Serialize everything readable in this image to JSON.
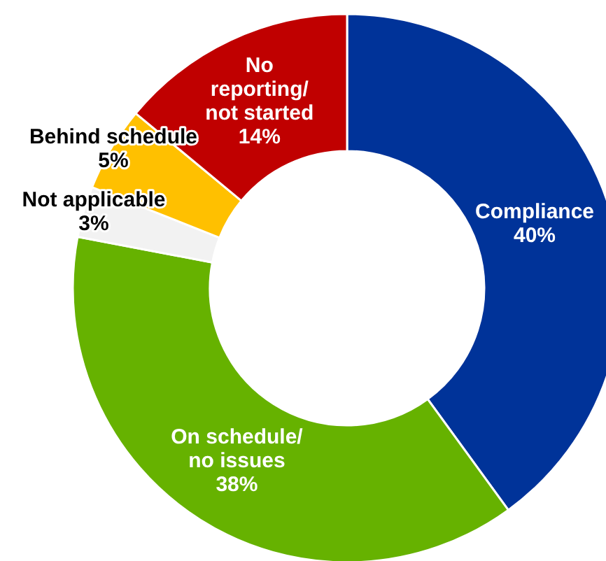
{
  "chart_data": {
    "type": "donut",
    "categories": [
      "Compliance",
      "On schedule/no issues",
      "Not applicable",
      "Behind schedule",
      "No reporting/not started"
    ],
    "values": [
      40,
      38,
      3,
      5,
      14
    ],
    "colors": [
      "#003399",
      "#66b200",
      "#f2f2f2",
      "#ffc000",
      "#c00000"
    ],
    "value_labels": [
      "40%",
      "38%",
      "3%",
      "5%",
      "14%"
    ]
  }
}
